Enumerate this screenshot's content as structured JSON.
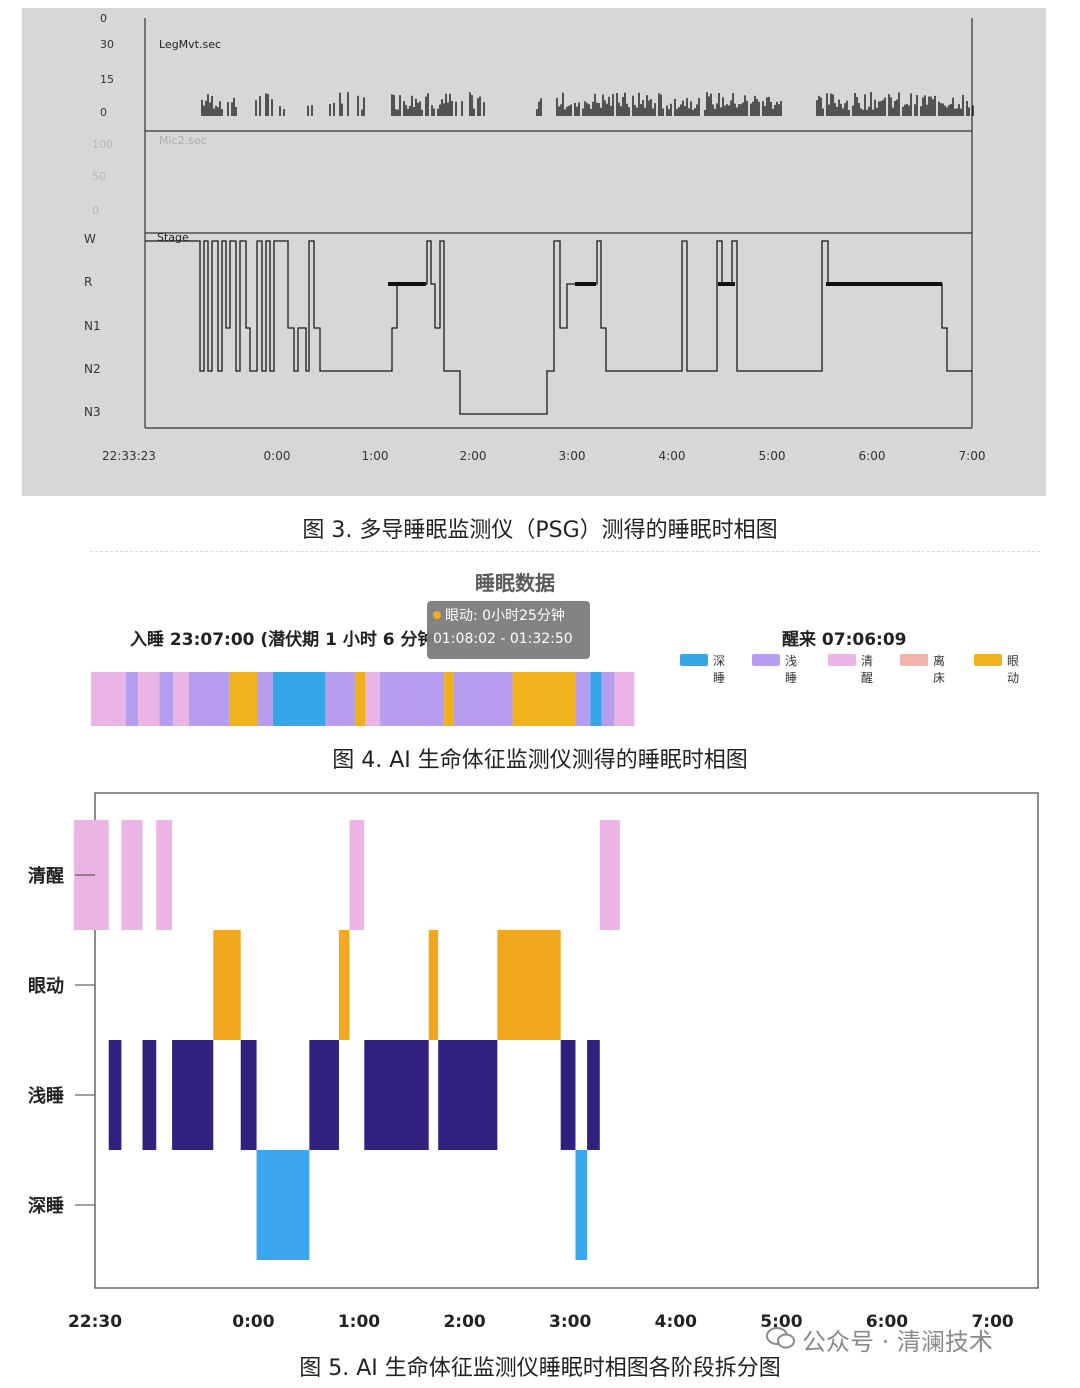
{
  "figure3": {
    "caption": "图 3. 多导睡眠监测仪（PSG）测得的睡眠时相图",
    "legmvt_label": "LegMvt.sec",
    "legmvt_ticks": [
      "0",
      "30",
      "15",
      "0"
    ],
    "mic2_label": "Mic2.sec",
    "mic2_ticks": [
      "100",
      "50",
      "0"
    ],
    "stage_label": "Stage",
    "stage_ticks": [
      "W",
      "R",
      "N1",
      "N2",
      "N3"
    ],
    "x_labels": [
      "22:33:23",
      "0:00",
      "1:00",
      "2:00",
      "3:00",
      "4:00",
      "5:00",
      "6:00",
      "7:00"
    ]
  },
  "figure4": {
    "title": "睡眠数据",
    "sleep_onset": "入睡 23:07:00  (潜伏期 1 小时 6 分钟)",
    "wake_time": "醒来 07:06:09",
    "tooltip": {
      "line1": "眼动:  0小时25分钟",
      "line2": "01:08:02 - 01:32:50"
    },
    "legend": [
      {
        "label": "深睡",
        "color": "#35a6e6"
      },
      {
        "label": "浅睡",
        "color": "#b79df0"
      },
      {
        "label": "清醒",
        "color": "#eab4e6"
      },
      {
        "label": "离床",
        "color": "#f2b3ad"
      },
      {
        "label": "眼动",
        "color": "#f0b21c"
      }
    ],
    "caption": "图 4. AI 生命体征监测仪测得的睡眠时相图"
  },
  "chart_data": {
    "type": "bar",
    "title": "",
    "y_categories": [
      "清醒",
      "眼动",
      "浅睡",
      "深睡"
    ],
    "x_range": [
      "22:30",
      "7:05"
    ],
    "x_ticks": [
      "22:30",
      "0:00",
      "1:00",
      "2:00",
      "3:00",
      "4:00",
      "5:00",
      "6:00",
      "7:00"
    ],
    "colors": {
      "清醒": "#eab4e4",
      "眼动": "#f2a81e",
      "浅睡": "#32207e",
      "深睡": "#3aa6ee"
    },
    "segments": [
      {
        "stage": "清醒",
        "start": "22:30",
        "end": "22:63"
      },
      {
        "stage": "浅睡",
        "start": "22:63",
        "end": "22:75"
      },
      {
        "stage": "清醒",
        "start": "22:75",
        "end": "22:95"
      },
      {
        "stage": "浅睡",
        "start": "22:95",
        "end": "23:08"
      },
      {
        "stage": "清醒",
        "start": "23:08",
        "end": "23:23"
      },
      {
        "stage": "浅睡",
        "start": "23:23",
        "end": "23:62"
      },
      {
        "stage": "眼动",
        "start": "23:62",
        "end": "23:88"
      },
      {
        "stage": "浅睡",
        "start": "23:88",
        "end": "24:03"
      },
      {
        "stage": "深睡",
        "start": "24:03",
        "end": "24:53"
      },
      {
        "stage": "浅睡",
        "start": "24:53",
        "end": "24:81"
      },
      {
        "stage": "眼动",
        "start": "24:81",
        "end": "24:91"
      },
      {
        "stage": "清醒",
        "start": "24:91",
        "end": "25:05"
      },
      {
        "stage": "浅睡",
        "start": "25:05",
        "end": "25:66"
      },
      {
        "stage": "眼动",
        "start": "25:66",
        "end": "25:75"
      },
      {
        "stage": "浅睡",
        "start": "25:75",
        "end": "26:31"
      },
      {
        "stage": "眼动",
        "start": "26:31",
        "end": "26:91"
      },
      {
        "stage": "浅睡",
        "start": "26:91",
        "end": "27:05"
      },
      {
        "stage": "深睡",
        "start": "27:05",
        "end": "27:16"
      },
      {
        "stage": "浅睡",
        "start": "27:16",
        "end": "27:28"
      },
      {
        "stage": "清醒",
        "start": "27:28",
        "end": "27:47"
      }
    ],
    "caption": "图 5. AI 生命体征监测仪睡眠时相图各阶段拆分图"
  },
  "watermark": "公众号 · 清澜技术"
}
